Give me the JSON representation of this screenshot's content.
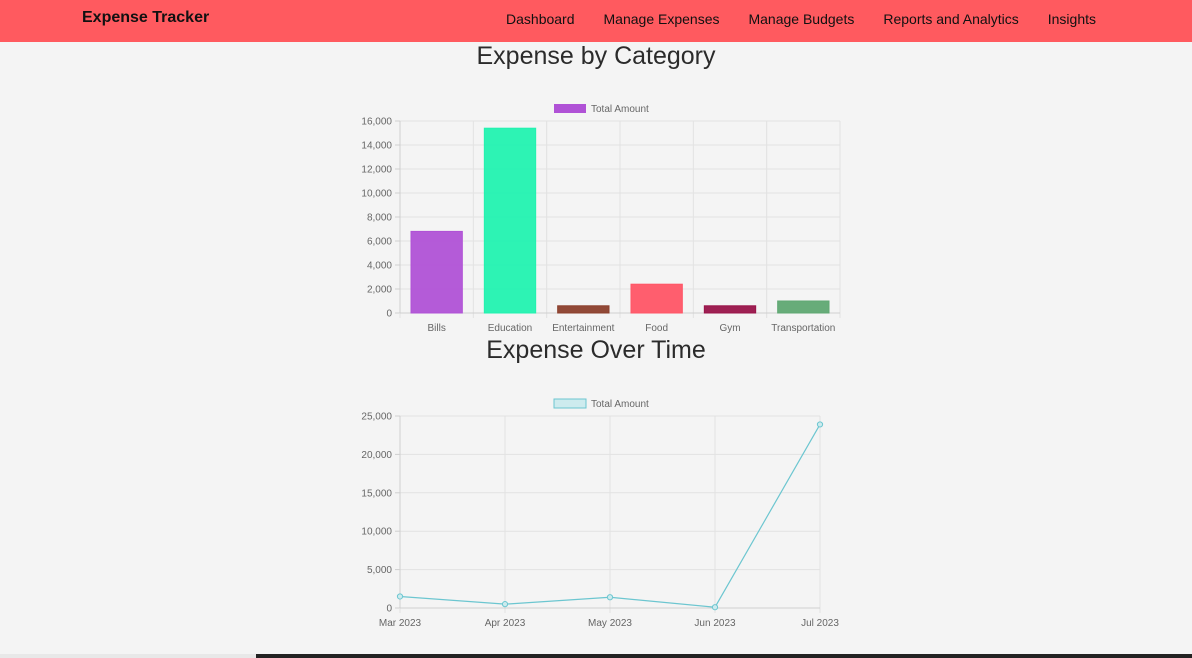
{
  "app": {
    "title": "Expense Tracker"
  },
  "nav": {
    "items": [
      "Dashboard",
      "Manage Expenses",
      "Manage Budgets",
      "Reports and Analytics",
      "Insights"
    ]
  },
  "sections": {
    "category_title": "Expense by Category",
    "time_title": "Expense Over Time"
  },
  "chart_data": [
    {
      "type": "bar",
      "title": "",
      "legend": {
        "position": "top",
        "labels": [
          "Total Amount"
        ]
      },
      "categories": [
        "Bills",
        "Education",
        "Entertainment",
        "Food",
        "Gym",
        "Transportation"
      ],
      "series": [
        {
          "name": "Total Amount",
          "values": [
            6800,
            15400,
            600,
            2400,
            600,
            1000
          ],
          "colors": [
            "#b052d6",
            "#22f2b0",
            "#8b3f2c",
            "#ff5566",
            "#99144a",
            "#5fa872"
          ]
        }
      ],
      "ylim": [
        0,
        16000
      ],
      "yticks": [
        "0",
        "2,000",
        "4,000",
        "6,000",
        "8,000",
        "10,000",
        "12,000",
        "14,000",
        "16,000"
      ],
      "ytick_values": [
        0,
        2000,
        4000,
        6000,
        8000,
        10000,
        12000,
        14000,
        16000
      ],
      "grid": true
    },
    {
      "type": "line",
      "title": "",
      "legend": {
        "position": "top",
        "labels": [
          "Total Amount"
        ]
      },
      "x": [
        "Mar 2023",
        "Apr 2023",
        "May 2023",
        "Jun 2023",
        "Jul 2023"
      ],
      "series": [
        {
          "name": "Total Amount",
          "values": [
            1500,
            500,
            1400,
            100,
            23900
          ],
          "color": "#6cc6d0"
        }
      ],
      "ylim": [
        0,
        25000
      ],
      "yticks": [
        "0",
        "5,000",
        "10,000",
        "15,000",
        "20,000",
        "25,000"
      ],
      "ytick_values": [
        0,
        5000,
        10000,
        15000,
        20000,
        25000
      ],
      "grid": true
    }
  ]
}
